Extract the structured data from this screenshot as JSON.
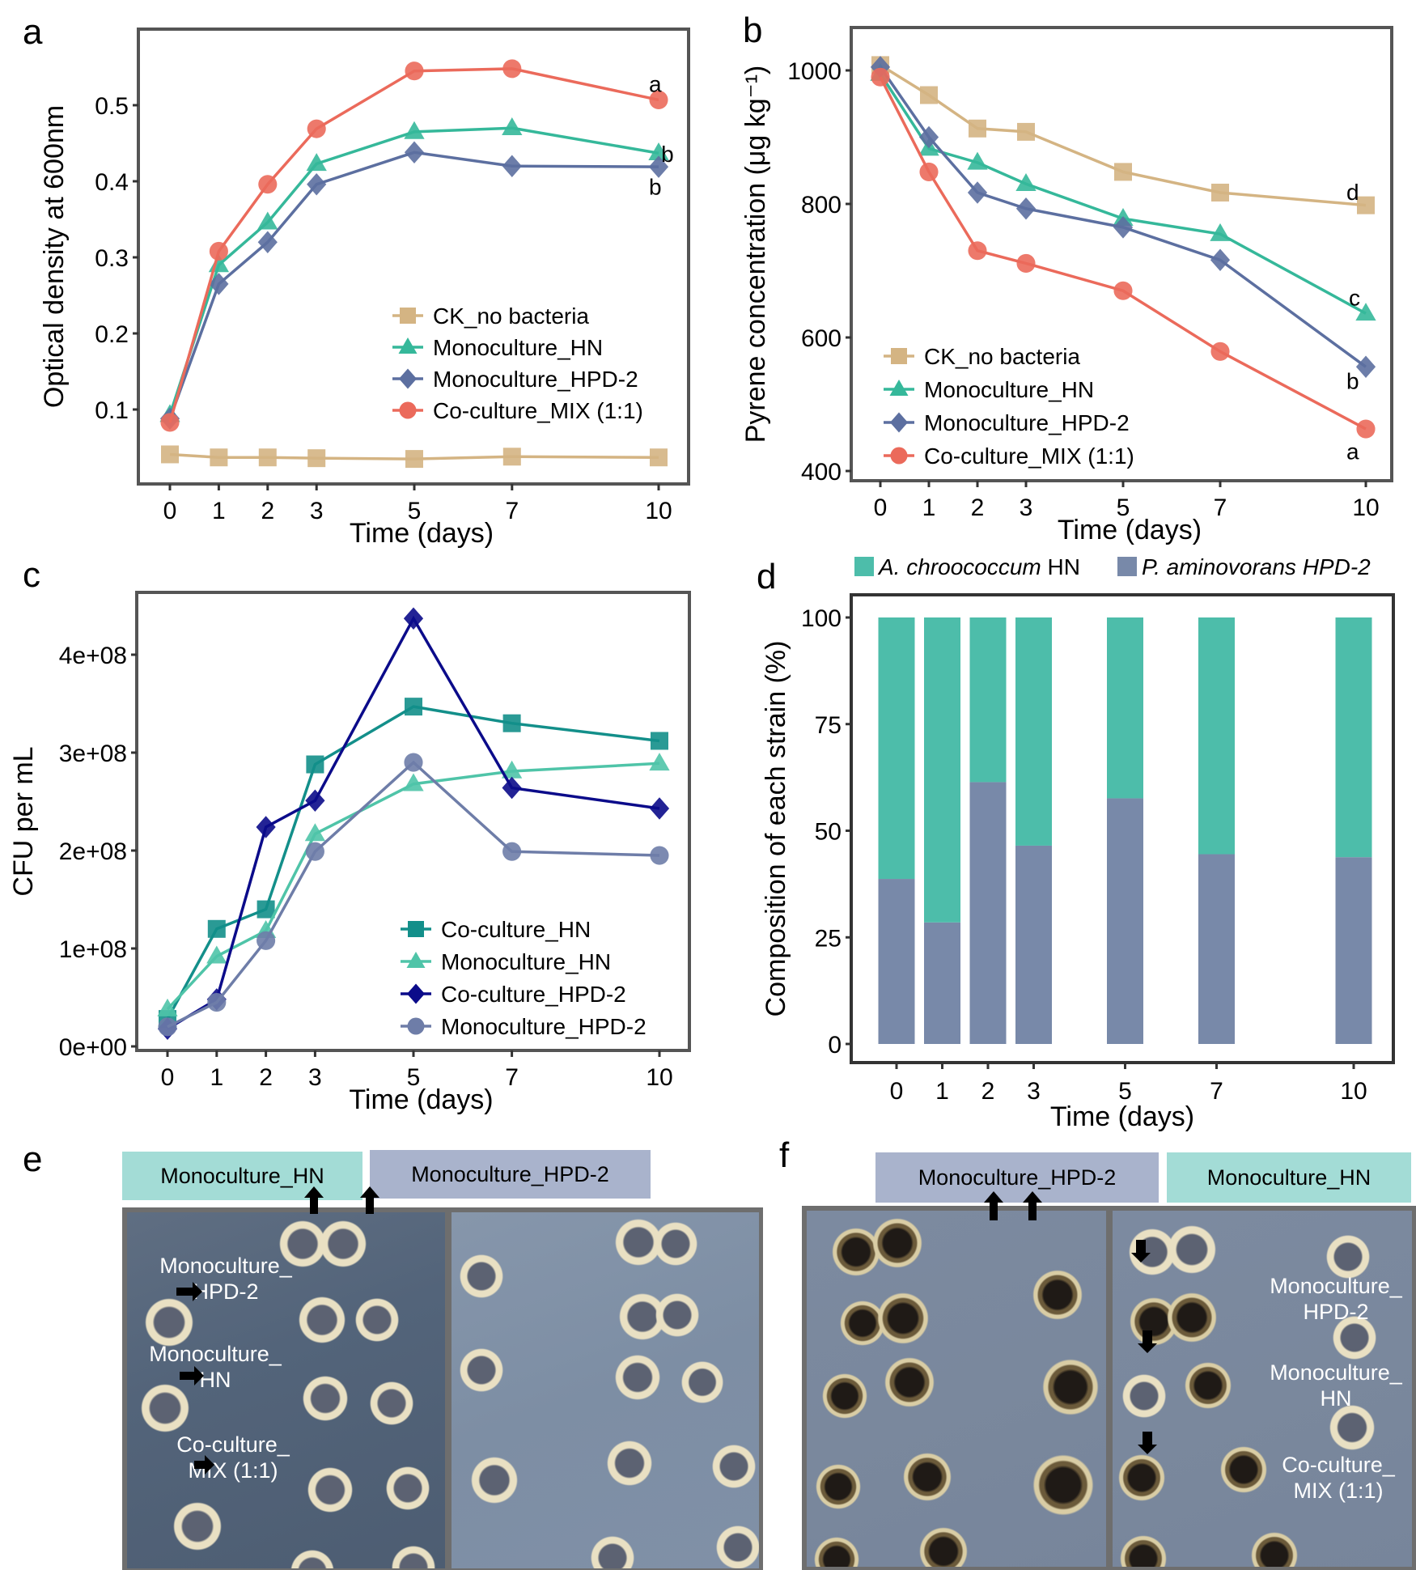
{
  "figure": {
    "panel_letters": [
      "a",
      "b",
      "c",
      "d",
      "e",
      "f"
    ]
  },
  "colors": {
    "ck": "#D4B483",
    "hn": "#35B89A",
    "hpd": "#5C6FA0",
    "mix": "#EB6A5B",
    "co_hn": "#138F8A",
    "mono_hn_c": "#4FC4A8",
    "co_hpd": "#0B0B8A",
    "mono_hpd_c": "#6E7DA8",
    "bar_hn": "#4DBDAA",
    "bar_hpd": "#7889A9",
    "label_hn_bg": "#A3DCD6",
    "label_hpd_bg": "#A9B3CC"
  },
  "chart_data": [
    {
      "id": "a",
      "type": "line",
      "title": "",
      "xlabel": "Time (days)",
      "ylabel": "Optical density at 600nm",
      "x": [
        0,
        1,
        2,
        3,
        5,
        7,
        10
      ],
      "x_ticks": [
        "0",
        "1",
        "2",
        "3",
        "5",
        "7",
        "10"
      ],
      "y_ticks": [
        "0.1",
        "0.2",
        "0.3",
        "0.4",
        "0.5"
      ],
      "y_tick_values": [
        0.1,
        0.2,
        0.3,
        0.4,
        0.5
      ],
      "ylim": [
        0.025,
        0.575
      ],
      "xlim": [
        -0.5,
        10.5
      ],
      "grid": false,
      "legend_position": "center-right",
      "series": [
        {
          "name": "CK_no bacteria",
          "marker": "square",
          "color_key": "ck",
          "values": [
            0.041,
            0.037,
            0.037,
            0.036,
            0.035,
            0.038,
            0.037
          ]
        },
        {
          "name": "Monoculture_HN",
          "marker": "triangle",
          "color_key": "hn",
          "values": [
            0.093,
            0.29,
            0.346,
            0.423,
            0.465,
            0.47,
            0.437
          ]
        },
        {
          "name": "Monoculture_HPD-2",
          "marker": "diamond",
          "color_key": "hpd",
          "values": [
            0.088,
            0.265,
            0.32,
            0.396,
            0.438,
            0.42,
            0.419
          ]
        },
        {
          "name": "Co-culture_MIX (1:1)",
          "marker": "circle",
          "color_key": "mix",
          "values": [
            0.083,
            0.308,
            0.396,
            0.469,
            0.545,
            0.548,
            0.507
          ]
        }
      ],
      "annotations": [
        {
          "text": "a",
          "series": "Co-culture_MIX (1:1)",
          "x": 10,
          "y": 0.528
        },
        {
          "text": "b",
          "series": "Monoculture_HN",
          "x": 10.25,
          "y": 0.436
        },
        {
          "text": "b",
          "series": "Monoculture_HPD-2",
          "x": 10,
          "y": 0.393
        }
      ]
    },
    {
      "id": "b",
      "type": "line",
      "title": "",
      "xlabel": "Time (days)",
      "ylabel": "Pyrene concentration (μg kg⁻¹)",
      "x": [
        0,
        1,
        2,
        3,
        5,
        7,
        10
      ],
      "x_ticks": [
        "0",
        "1",
        "2",
        "3",
        "5",
        "7",
        "10"
      ],
      "y_ticks": [
        "400",
        "600",
        "800",
        "1000"
      ],
      "y_tick_values": [
        400,
        600,
        800,
        1000
      ],
      "ylim": [
        385,
        1065
      ],
      "xlim": [
        -0.5,
        10.5
      ],
      "grid": false,
      "legend_position": "bottom-left",
      "series": [
        {
          "name": "CK_no bacteria",
          "marker": "square",
          "color_key": "ck",
          "values": [
            1008,
            963,
            913,
            908,
            848,
            817,
            798
          ]
        },
        {
          "name": "Monoculture_HN",
          "marker": "triangle",
          "color_key": "hn",
          "values": [
            995,
            883,
            862,
            830,
            778,
            755,
            636
          ]
        },
        {
          "name": "Monoculture_HPD-2",
          "marker": "diamond",
          "color_key": "hpd",
          "values": [
            1005,
            900,
            817,
            793,
            765,
            716,
            556
          ]
        },
        {
          "name": "Co-culture_MIX (1:1)",
          "marker": "circle",
          "color_key": "mix",
          "values": [
            990,
            848,
            730,
            711,
            670,
            579,
            463
          ]
        }
      ],
      "annotations": [
        {
          "text": "d",
          "x": 9.8,
          "y": 818
        },
        {
          "text": "c",
          "x": 9.85,
          "y": 660
        },
        {
          "text": "b",
          "x": 9.8,
          "y": 535
        },
        {
          "text": "a",
          "x": 9.8,
          "y": 430
        }
      ]
    },
    {
      "id": "c",
      "type": "line",
      "title": "",
      "xlabel": "Time (days)",
      "ylabel": "CFU per mL",
      "x": [
        0,
        1,
        2,
        3,
        5,
        7,
        10
      ],
      "x_ticks": [
        "0",
        "1",
        "2",
        "3",
        "5",
        "7",
        "10"
      ],
      "y_ticks": [
        "0e+00",
        "1e+08",
        "2e+08",
        "3e+08",
        "4e+08"
      ],
      "y_tick_values": [
        0,
        100000000,
        200000000,
        300000000,
        400000000
      ],
      "ylim": [
        -5000000,
        460000000
      ],
      "xlim": [
        -0.5,
        10.5
      ],
      "grid": false,
      "legend_position": "bottom-right",
      "series": [
        {
          "name": "Co-culture_HN",
          "marker": "square",
          "color_key": "co_hn",
          "values": [
            28000000,
            120000000,
            140000000,
            288000000,
            347000000,
            330000000,
            312000000
          ]
        },
        {
          "name": "Monoculture_HN",
          "marker": "triangle",
          "color_key": "mono_hn_c",
          "values": [
            38000000,
            92000000,
            118000000,
            217000000,
            268000000,
            281000000,
            289000000
          ]
        },
        {
          "name": "Co-culture_HPD-2",
          "marker": "diamond",
          "color_key": "co_hpd",
          "values": [
            18000000,
            48000000,
            224000000,
            251000000,
            437000000,
            264000000,
            243000000
          ]
        },
        {
          "name": "Monoculture_HPD-2",
          "marker": "circle",
          "color_key": "mono_hpd_c",
          "values": [
            20000000,
            45000000,
            108000000,
            199000000,
            290000000,
            199000000,
            195000000
          ]
        }
      ]
    },
    {
      "id": "d",
      "type": "bar",
      "stacked": true,
      "title": "",
      "xlabel": "Time (days)",
      "ylabel": "Composition of each strain (%)",
      "categories": [
        "0",
        "1",
        "2",
        "3",
        "5",
        "7",
        "10"
      ],
      "x": [
        0,
        1,
        2,
        3,
        5,
        7,
        10
      ],
      "y_ticks": [
        "0",
        "25",
        "50",
        "75",
        "100"
      ],
      "y_tick_values": [
        0,
        25,
        50,
        75,
        100
      ],
      "ylim": [
        -5,
        105
      ],
      "xlim": [
        -0.5,
        10.5
      ],
      "grid": false,
      "legend_position": "top",
      "series": [
        {
          "name": "P. aminovorans HPD-2",
          "color_key": "bar_hpd",
          "values": [
            38.7,
            28.5,
            61.4,
            46.5,
            57.6,
            44.5,
            43.8
          ]
        },
        {
          "name": "A. chroococcum HN",
          "color_key": "bar_hn",
          "values": [
            61.3,
            71.5,
            38.6,
            53.5,
            42.4,
            55.5,
            56.2
          ]
        }
      ],
      "legend": [
        {
          "italic": "A. chroococcum",
          "plain": " HN",
          "color_key": "bar_hn"
        },
        {
          "italic": "P. aminovorans HPD-2",
          "plain": "",
          "color_key": "bar_hpd"
        }
      ]
    }
  ],
  "panel_e": {
    "letter": "e",
    "labels": {
      "left": "Monoculture_HN",
      "right": "Monoculture_HPD-2"
    },
    "annotations": [
      {
        "line1": "Monoculture_",
        "line2": "HPD-2"
      },
      {
        "line1": "Monoculture_",
        "line2": "HN"
      },
      {
        "line1": "Co-culture_",
        "line2": "MIX (1:1)"
      }
    ]
  },
  "panel_f": {
    "letter": "f",
    "labels": {
      "left": "Monoculture_HPD-2",
      "right": "Monoculture_HN"
    },
    "annotations": [
      {
        "line1": "Monoculture_",
        "line2": "HPD-2"
      },
      {
        "line1": "Monoculture_",
        "line2": "HN"
      },
      {
        "line1": "Co-culture_",
        "line2": "MIX (1:1)"
      }
    ]
  }
}
